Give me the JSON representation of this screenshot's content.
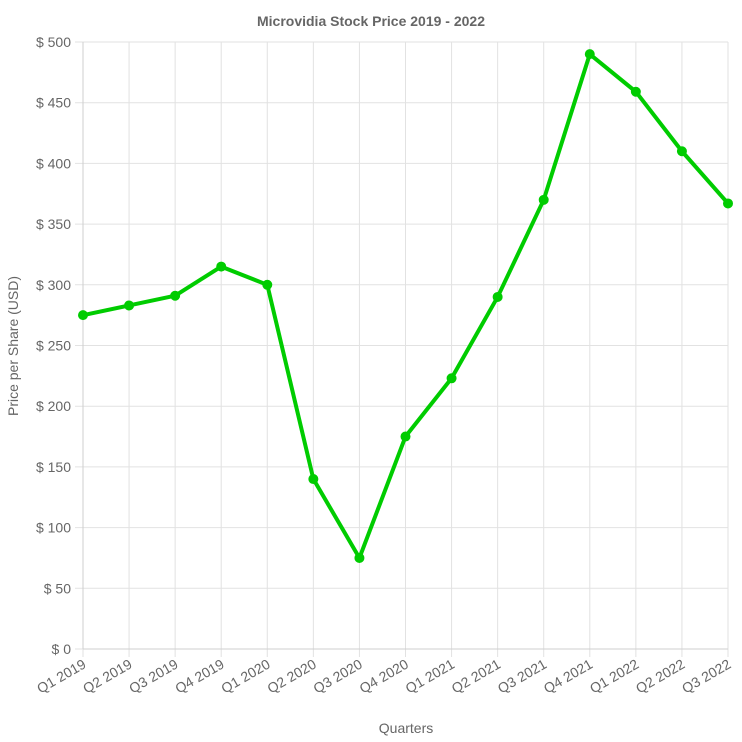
{
  "chart_data": {
    "type": "line",
    "title": "Microvidia Stock Price 2019 - 2022",
    "xlabel": "Quarters",
    "ylabel": "Price per Share (USD)",
    "categories": [
      "Q1 2019",
      "Q2 2019",
      "Q3 2019",
      "Q4 2019",
      "Q1 2020",
      "Q2 2020",
      "Q3 2020",
      "Q4 2020",
      "Q1 2021",
      "Q2 2021",
      "Q3 2021",
      "Q4 2021",
      "Q1 2022",
      "Q2 2022",
      "Q3 2022"
    ],
    "series": [
      {
        "values": [
          275,
          283,
          291,
          315,
          300,
          140,
          75,
          175,
          223,
          290,
          370,
          490,
          459,
          410,
          367
        ],
        "color": "#00cc00"
      }
    ],
    "ylim": [
      0,
      500
    ],
    "y_ticks": [
      0,
      50,
      100,
      150,
      200,
      250,
      300,
      350,
      400,
      450,
      500
    ],
    "y_tick_prefix": "$ ",
    "grid": true,
    "legend": "none"
  }
}
